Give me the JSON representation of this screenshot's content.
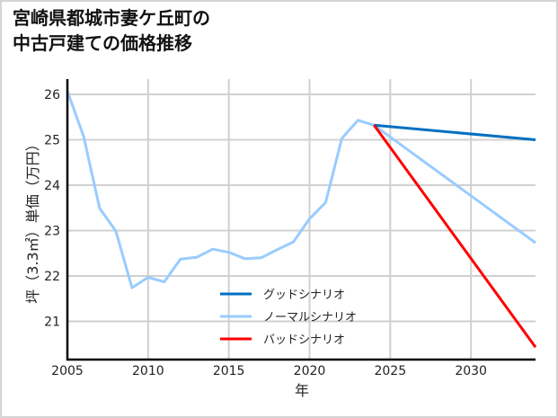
{
  "title": {
    "line1": "宮崎県都城市妻ケ丘町の",
    "line2": "中古戸建ての価格推移"
  },
  "chart_data": {
    "type": "line",
    "title": "宮崎県都城市妻ケ丘町の中古戸建ての価格推移",
    "xlabel": "年",
    "ylabel": "坪（3.3㎡）単価（万円）",
    "xlim": [
      2005,
      2034
    ],
    "ylim": [
      20.2,
      26.3
    ],
    "x_ticks": [
      2005,
      2010,
      2015,
      2020,
      2025,
      2030
    ],
    "y_ticks": [
      21,
      22,
      23,
      24,
      25,
      26
    ],
    "grid": true,
    "legend_position": "lower center",
    "series": [
      {
        "name": "グッドシナリオ",
        "color": "#0070c0",
        "x": [
          2024,
          2034
        ],
        "values": [
          25.32,
          25.0
        ]
      },
      {
        "name": "ノーマルシナリオ",
        "color": "#99ccff",
        "x": [
          2005,
          2006,
          2007,
          2008,
          2009,
          2010,
          2011,
          2012,
          2013,
          2014,
          2015,
          2016,
          2017,
          2018,
          2019,
          2020,
          2021,
          2022,
          2023,
          2024,
          2034
        ],
        "values": [
          26.07,
          25.08,
          23.49,
          22.99,
          21.74,
          21.97,
          21.87,
          22.37,
          22.41,
          22.59,
          22.52,
          22.38,
          22.4,
          22.58,
          22.75,
          23.26,
          23.62,
          25.03,
          25.43,
          25.32,
          22.73
        ]
      },
      {
        "name": "バッドシナリオ",
        "color": "#ff0000",
        "x": [
          2024,
          2034
        ],
        "values": [
          25.32,
          20.43
        ]
      }
    ]
  },
  "colors": {
    "grid": "#d0d0d0",
    "axis": "#000000",
    "frame": "#d4d4d4"
  }
}
